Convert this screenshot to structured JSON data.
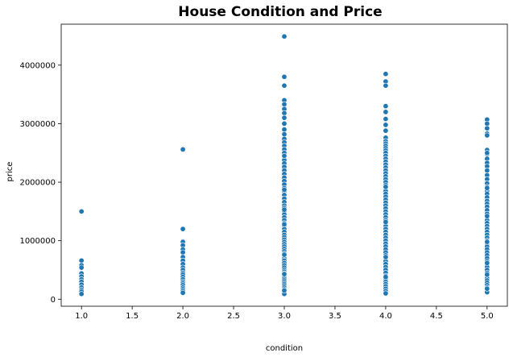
{
  "chart_data": {
    "type": "scatter",
    "title": "House Condition and Price",
    "xlabel": "condition",
    "ylabel": "price",
    "xlim": [
      0.8,
      5.2
    ],
    "ylim": [
      -120000,
      4700000
    ],
    "xticks": [
      1.0,
      1.5,
      2.0,
      2.5,
      3.0,
      3.5,
      4.0,
      4.5,
      5.0
    ],
    "xtick_labels": [
      "1.0",
      "1.5",
      "2.0",
      "2.5",
      "3.0",
      "3.5",
      "4.0",
      "4.5",
      "5.0"
    ],
    "yticks": [
      0,
      1000000,
      2000000,
      3000000,
      4000000
    ],
    "ytick_labels": [
      "0",
      "1000000",
      "2000000",
      "3000000",
      "4000000"
    ],
    "grid": false,
    "color": "#1f77b4",
    "series": [
      {
        "x": [
          1,
          1,
          1,
          1,
          1,
          1,
          1,
          1,
          1,
          1,
          1,
          1,
          1
        ],
        "y": [
          1500000,
          660000,
          580000,
          540000,
          440000,
          390000,
          340000,
          300000,
          250000,
          200000,
          160000,
          130000,
          90000
        ]
      },
      {
        "x": [
          2,
          2,
          2,
          2,
          2,
          2,
          2,
          2,
          2,
          2,
          2,
          2,
          2,
          2,
          2,
          2,
          2,
          2,
          2,
          2,
          2,
          2
        ],
        "y": [
          2560000,
          1200000,
          980000,
          920000,
          850000,
          800000,
          720000,
          660000,
          600000,
          540000,
          500000,
          450000,
          420000,
          380000,
          340000,
          300000,
          270000,
          240000,
          200000,
          170000,
          140000,
          110000
        ]
      },
      {
        "x": [
          3,
          3,
          3,
          3,
          3,
          3,
          3,
          3,
          3,
          3,
          3,
          3,
          3,
          3,
          3,
          3,
          3,
          3,
          3,
          3,
          3,
          3,
          3,
          3,
          3,
          3,
          3,
          3,
          3,
          3,
          3,
          3,
          3,
          3,
          3,
          3,
          3,
          3,
          3,
          3,
          3,
          3,
          3,
          3,
          3,
          3,
          3,
          3,
          3,
          3,
          3,
          3,
          3,
          3,
          3,
          3,
          3,
          3,
          3,
          3,
          3,
          3,
          3,
          3,
          3,
          3,
          3,
          3,
          3,
          3,
          3,
          3,
          3,
          3,
          3,
          3,
          3
        ],
        "y": [
          4490000,
          3800000,
          3650000,
          3400000,
          3330000,
          3250000,
          3180000,
          3100000,
          3000000,
          2900000,
          2820000,
          2740000,
          2680000,
          2620000,
          2560000,
          2500000,
          2440000,
          2380000,
          2320000,
          2260000,
          2200000,
          2140000,
          2080000,
          2020000,
          1960000,
          1900000,
          1840000,
          1780000,
          1720000,
          1660000,
          1600000,
          1560000,
          1500000,
          1450000,
          1400000,
          1350000,
          1300000,
          1250000,
          1200000,
          1150000,
          1100000,
          1060000,
          1020000,
          980000,
          940000,
          900000,
          860000,
          820000,
          780000,
          740000,
          700000,
          660000,
          620000,
          580000,
          540000,
          500000,
          470000,
          440000,
          410000,
          380000,
          350000,
          320000,
          290000,
          260000,
          230000,
          200000,
          170000,
          140000,
          110000,
          90000,
          2450000,
          1870000,
          1530000,
          1280000,
          760000,
          430000,
          150000
        ]
      },
      {
        "x": [
          4,
          4,
          4,
          4,
          4,
          4,
          4,
          4,
          4,
          4,
          4,
          4,
          4,
          4,
          4,
          4,
          4,
          4,
          4,
          4,
          4,
          4,
          4,
          4,
          4,
          4,
          4,
          4,
          4,
          4,
          4,
          4,
          4,
          4,
          4,
          4,
          4,
          4,
          4,
          4,
          4,
          4,
          4,
          4,
          4,
          4,
          4,
          4,
          4,
          4,
          4,
          4,
          4,
          4,
          4,
          4,
          4,
          4,
          4,
          4,
          4,
          4,
          4,
          4,
          4,
          4,
          4,
          4,
          4
        ],
        "y": [
          3850000,
          3720000,
          3650000,
          3300000,
          3200000,
          3080000,
          2980000,
          2880000,
          2760000,
          2700000,
          2660000,
          2620000,
          2580000,
          2540000,
          2500000,
          2450000,
          2400000,
          2350000,
          2300000,
          2250000,
          2200000,
          2150000,
          2100000,
          2050000,
          2000000,
          1950000,
          1900000,
          1850000,
          1800000,
          1750000,
          1700000,
          1650000,
          1600000,
          1550000,
          1500000,
          1450000,
          1400000,
          1350000,
          1300000,
          1250000,
          1200000,
          1150000,
          1100000,
          1050000,
          1000000,
          950000,
          900000,
          850000,
          800000,
          750000,
          700000,
          650000,
          600000,
          550000,
          500000,
          450000,
          400000,
          350000,
          300000,
          260000,
          220000,
          180000,
          140000,
          100000,
          2980000,
          1920000,
          1320000,
          720000,
          380000
        ]
      },
      {
        "x": [
          5,
          5,
          5,
          5,
          5,
          5,
          5,
          5,
          5,
          5,
          5,
          5,
          5,
          5,
          5,
          5,
          5,
          5,
          5,
          5,
          5,
          5,
          5,
          5,
          5,
          5,
          5,
          5,
          5,
          5,
          5,
          5,
          5,
          5,
          5,
          5,
          5,
          5,
          5,
          5,
          5,
          5,
          5,
          5,
          5,
          5,
          5,
          5,
          5,
          5,
          5,
          5,
          5,
          5,
          5,
          5,
          5,
          5
        ],
        "y": [
          3070000,
          3000000,
          2920000,
          2830000,
          2800000,
          2550000,
          2480000,
          2400000,
          2330000,
          2270000,
          2200000,
          2120000,
          2050000,
          1980000,
          1920000,
          1850000,
          1800000,
          1740000,
          1680000,
          1630000,
          1580000,
          1520000,
          1460000,
          1400000,
          1350000,
          1300000,
          1250000,
          1200000,
          1150000,
          1100000,
          1050000,
          1000000,
          950000,
          900000,
          850000,
          800000,
          750000,
          700000,
          650000,
          600000,
          550000,
          500000,
          450000,
          400000,
          360000,
          320000,
          280000,
          240000,
          200000,
          160000,
          120000,
          2500000,
          1900000,
          1420000,
          980000,
          620000,
          420000,
          180000
        ]
      }
    ]
  }
}
